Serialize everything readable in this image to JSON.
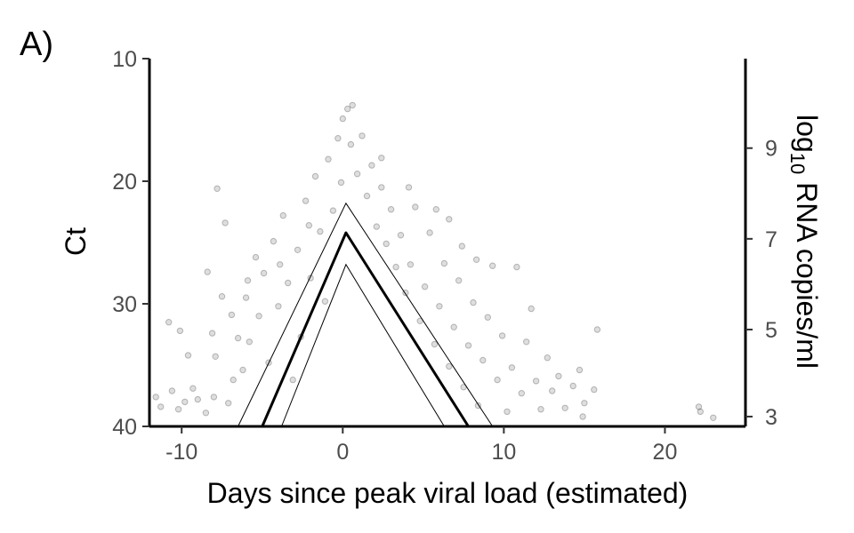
{
  "chart_data": {
    "type": "scatter",
    "panel_label": "A)",
    "xlabel": "Days since peak viral load (estimated)",
    "ylabel": "Ct",
    "y2label": {
      "prefix": "log",
      "subscript": "10",
      "suffix": " RNA copies/ml"
    },
    "xlim": [
      -12,
      25
    ],
    "ylim": [
      10,
      40
    ],
    "y_reversed": true,
    "x_ticks": [
      -10,
      0,
      10,
      20
    ],
    "x_tick_labels": [
      "-10",
      "0",
      "10",
      "20"
    ],
    "y_ticks": [
      10,
      20,
      30,
      40
    ],
    "y_tick_labels": [
      "10",
      "20",
      "30",
      "40"
    ],
    "y2_ticks": [
      {
        "label": "9",
        "ct": 17.3
      },
      {
        "label": "7",
        "ct": 24.7
      },
      {
        "label": "5",
        "ct": 32.1
      },
      {
        "label": "3",
        "ct": 39.2
      }
    ],
    "grid": false,
    "point_color": "#000000",
    "point_opacity": 0.13,
    "fit": {
      "peak_x": 0.2,
      "peak_ct": 23.5,
      "upper_band": [
        [
          -6.5,
          40
        ],
        [
          0.2,
          21.8
        ],
        [
          9.3,
          40
        ]
      ],
      "lower_band": [
        [
          -3.8,
          40
        ],
        [
          0.2,
          26.8
        ],
        [
          6.3,
          40
        ]
      ],
      "median_line": [
        [
          -5.0,
          40
        ],
        [
          0.2,
          24.2
        ],
        [
          7.8,
          40
        ]
      ]
    },
    "points": [
      [
        -11.6,
        37.6
      ],
      [
        -11.3,
        38.4
      ],
      [
        -10.6,
        37.1
      ],
      [
        -10.2,
        38.6
      ],
      [
        -9.8,
        38.0
      ],
      [
        -9.3,
        36.9
      ],
      [
        -9.0,
        37.8
      ],
      [
        -8.5,
        38.9
      ],
      [
        -10.8,
        31.5
      ],
      [
        -10.1,
        32.2
      ],
      [
        -9.6,
        34.2
      ],
      [
        -8.1,
        32.4
      ],
      [
        -8.0,
        37.6
      ],
      [
        -7.9,
        34.3
      ],
      [
        -7.5,
        29.4
      ],
      [
        -7.8,
        20.6
      ],
      [
        -8.4,
        27.4
      ],
      [
        -7.1,
        38.1
      ],
      [
        -6.8,
        36.2
      ],
      [
        -6.5,
        32.8
      ],
      [
        -6.2,
        35.4
      ],
      [
        -6.9,
        30.9
      ],
      [
        -7.3,
        23.4
      ],
      [
        -6.0,
        29.5
      ],
      [
        -5.8,
        33.1
      ],
      [
        -5.4,
        26.2
      ],
      [
        -5.2,
        31.0
      ],
      [
        -4.9,
        27.5
      ],
      [
        -4.6,
        34.8
      ],
      [
        -4.3,
        24.9
      ],
      [
        -4.0,
        30.2
      ],
      [
        -3.7,
        22.8
      ],
      [
        -3.4,
        28.3
      ],
      [
        -3.1,
        36.2
      ],
      [
        -2.8,
        25.6
      ],
      [
        -2.6,
        32.7
      ],
      [
        -2.3,
        21.6
      ],
      [
        -2.0,
        27.9
      ],
      [
        -1.7,
        19.6
      ],
      [
        -1.4,
        24.1
      ],
      [
        -1.1,
        29.8
      ],
      [
        -0.9,
        18.2
      ],
      [
        -0.6,
        22.4
      ],
      [
        -0.3,
        16.5
      ],
      [
        -0.1,
        20.1
      ],
      [
        0.0,
        14.9
      ],
      [
        0.3,
        14.1
      ],
      [
        0.6,
        13.8
      ],
      [
        0.5,
        17.0
      ],
      [
        0.9,
        19.4
      ],
      [
        1.2,
        16.3
      ],
      [
        1.5,
        21.2
      ],
      [
        1.8,
        18.7
      ],
      [
        2.1,
        23.7
      ],
      [
        2.4,
        20.5
      ],
      [
        2.7,
        25.1
      ],
      [
        3.0,
        22.3
      ],
      [
        3.3,
        27.0
      ],
      [
        3.6,
        24.4
      ],
      [
        3.9,
        29.1
      ],
      [
        4.2,
        26.8
      ],
      [
        4.5,
        22.1
      ],
      [
        4.8,
        31.4
      ],
      [
        5.1,
        28.6
      ],
      [
        5.4,
        24.2
      ],
      [
        5.7,
        33.3
      ],
      [
        6.0,
        30.2
      ],
      [
        6.3,
        26.7
      ],
      [
        6.6,
        35.1
      ],
      [
        6.9,
        31.9
      ],
      [
        7.2,
        28.1
      ],
      [
        7.5,
        36.8
      ],
      [
        7.8,
        33.4
      ],
      [
        8.1,
        29.9
      ],
      [
        8.4,
        38.3
      ],
      [
        8.7,
        34.6
      ],
      [
        9.0,
        31.1
      ],
      [
        9.3,
        26.9
      ],
      [
        9.6,
        36.2
      ],
      [
        9.9,
        32.6
      ],
      [
        10.2,
        38.8
      ],
      [
        10.5,
        35.2
      ],
      [
        10.8,
        27.0
      ],
      [
        11.1,
        37.3
      ],
      [
        11.4,
        33.1
      ],
      [
        11.7,
        30.4
      ],
      [
        12.0,
        36.3
      ],
      [
        12.3,
        38.6
      ],
      [
        12.7,
        34.4
      ],
      [
        13.0,
        37.1
      ],
      [
        13.4,
        35.9
      ],
      [
        13.8,
        38.5
      ],
      [
        14.3,
        36.7
      ],
      [
        14.7,
        35.4
      ],
      [
        15.0,
        38.1
      ],
      [
        15.6,
        37.0
      ],
      [
        15.8,
        32.1
      ],
      [
        14.9,
        39.2
      ],
      [
        22.1,
        38.4
      ],
      [
        22.2,
        38.8
      ],
      [
        23.0,
        39.3
      ],
      [
        8.3,
        26.4
      ],
      [
        7.4,
        25.3
      ],
      [
        6.6,
        23.1
      ],
      [
        5.8,
        22.3
      ],
      [
        4.1,
        20.5
      ],
      [
        2.4,
        18.1
      ],
      [
        -2.1,
        23.6
      ],
      [
        -3.9,
        26.8
      ],
      [
        -5.9,
        28.1
      ]
    ]
  }
}
